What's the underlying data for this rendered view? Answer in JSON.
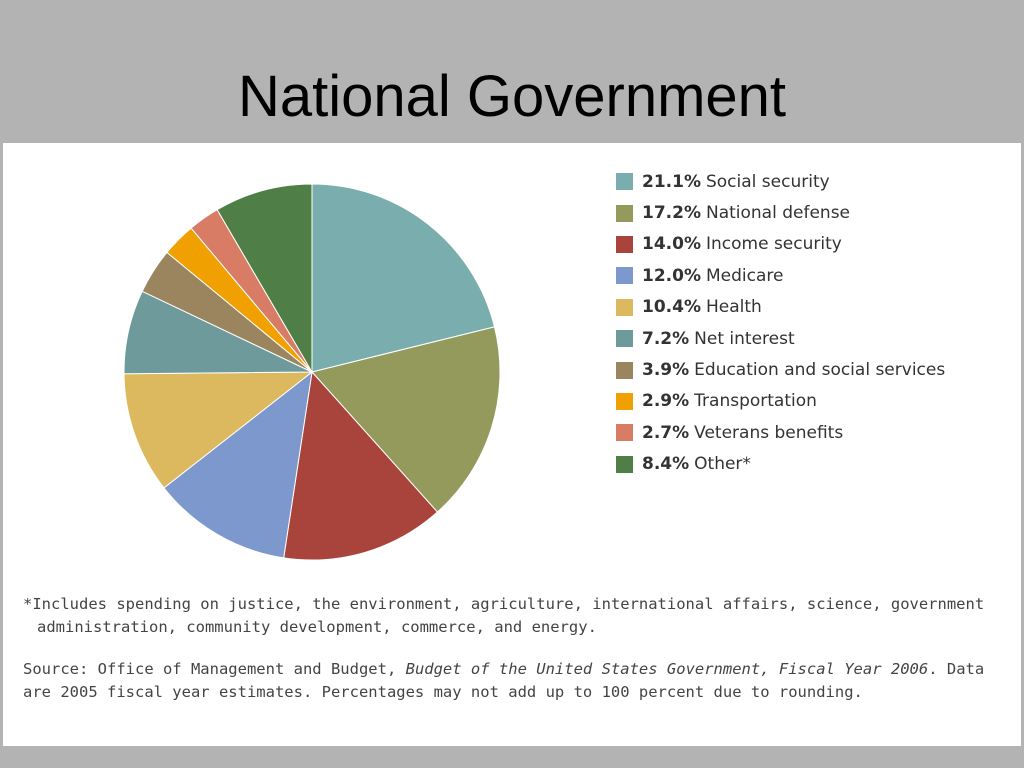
{
  "slide": {
    "title": "National Government"
  },
  "chart_data": {
    "type": "pie",
    "title": "",
    "slices": [
      {
        "label": "Social security",
        "value": 21.1,
        "display": "21.1%",
        "color": "#7aadad"
      },
      {
        "label": "National defense",
        "value": 17.2,
        "display": "17.2%",
        "color": "#949a5c"
      },
      {
        "label": "Income security",
        "value": 14.0,
        "display": "14.0%",
        "color": "#a8443c"
      },
      {
        "label": "Medicare",
        "value": 12.0,
        "display": "12.0%",
        "color": "#7d98cd"
      },
      {
        "label": "Health",
        "value": 10.4,
        "display": "10.4%",
        "color": "#dcb95e"
      },
      {
        "label": "Net interest",
        "value": 7.2,
        "display": "7.2%",
        "color": "#6e9a9c"
      },
      {
        "label": "Education and social services",
        "value": 3.9,
        "display": "3.9%",
        "color": "#9a855e"
      },
      {
        "label": "Transportation",
        "value": 2.9,
        "display": "2.9%",
        "color": "#f0a000"
      },
      {
        "label": "Veterans benefits",
        "value": 2.7,
        "display": "2.7%",
        "color": "#d97c66"
      },
      {
        "label": "Other*",
        "value": 8.4,
        "display": "8.4%",
        "color": "#4f7f47"
      }
    ],
    "legend_position": "right"
  },
  "notes": {
    "footnote": "*Includes spending on justice, the environment, agriculture, international affairs, science, government administration, community development, commerce, and energy.",
    "source_prefix": "Source: Office of Management and Budget, ",
    "source_title": "Budget of the United States Government, Fiscal Year 2006",
    "source_suffix": ". Data are 2005 fiscal year estimates. Percentages may not add up to 100 percent due to rounding."
  }
}
